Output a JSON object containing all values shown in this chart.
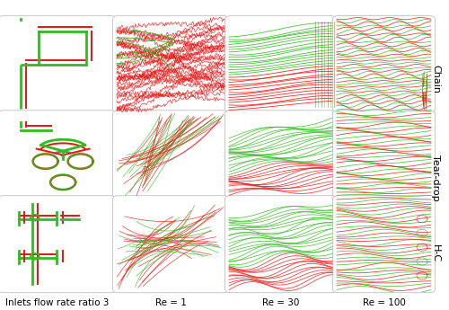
{
  "figure_width": 5.0,
  "figure_height": 3.45,
  "dpi": 100,
  "bg_color": "#ffffff",
  "row_labels": [
    "Chain",
    "Tear-drop",
    "H-C"
  ],
  "col_labels": [
    "Inlets flow rate ratio 3",
    "Re = 1",
    "Re = 30",
    "Re = 100"
  ],
  "red_color": "#ee1111",
  "green_color": "#33bb22",
  "dark_gold": "#8B6410",
  "font_size_col": 7.5,
  "font_size_row": 8.0,
  "cols": [
    0.0,
    0.255,
    0.505,
    0.745,
    0.965
  ],
  "rows": [
    0.06,
    0.365,
    0.64,
    0.945
  ]
}
